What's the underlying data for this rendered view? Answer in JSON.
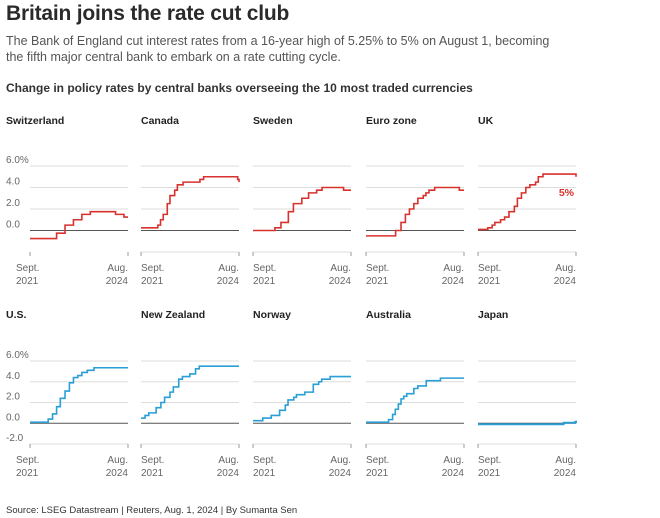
{
  "title": "Britain joins the rate cut club",
  "subtitle": "The Bank of England cut interest rates from a 16-year high of 5.25% to 5% on August 1, becoming the fifth major central bank to embark on a rate cutting cycle.",
  "section_title": "Change in policy rates by central banks overseeing the 10 most traded currencies",
  "source": "Source: LSEG Datastream | Reuters, Aug. 1, 2024 | By Sumanta Sen",
  "colors": {
    "red": "#d8322e",
    "blue": "#2a9fd6",
    "zero_line": "#555555",
    "grid": "#dddddd"
  },
  "chart_data": {
    "type": "line",
    "x_range": [
      2021.67,
      2024.58
    ],
    "x_ticks": [
      {
        "x": 2021.67,
        "label_1": "Sept.",
        "label_2": "2021"
      },
      {
        "x": 2024.58,
        "label_1": "Aug.",
        "label_2": "2024"
      }
    ],
    "ylim": [
      -2,
      6
    ],
    "y_ticks": [
      6,
      4,
      2,
      0,
      -2
    ],
    "y_tick_labels": [
      "6.0%",
      "4.0",
      "2.0",
      "0.0",
      "-2.0"
    ],
    "panels": [
      {
        "name": "Switzerland",
        "color": "red",
        "row": 0,
        "y_ticks": [
          6,
          4,
          2,
          0
        ],
        "x": [
          2021.67,
          2022.46,
          2022.71,
          2022.96,
          2023.21,
          2023.46,
          2024.21,
          2024.46,
          2024.58
        ],
        "y": [
          -0.75,
          -0.25,
          0.5,
          1.0,
          1.5,
          1.75,
          1.5,
          1.25,
          1.25
        ]
      },
      {
        "name": "Canada",
        "color": "red",
        "row": 0,
        "x": [
          2021.67,
          2022.17,
          2022.25,
          2022.33,
          2022.45,
          2022.53,
          2022.67,
          2022.75,
          2022.92,
          2023.08,
          2023.42,
          2023.53,
          2024.42,
          2024.54,
          2024.58
        ],
        "y": [
          0.25,
          0.5,
          1.0,
          1.5,
          2.5,
          3.25,
          3.75,
          4.25,
          4.5,
          4.5,
          4.75,
          5.0,
          5.0,
          4.75,
          4.5
        ]
      },
      {
        "name": "Sweden",
        "color": "red",
        "row": 0,
        "x": [
          2021.67,
          2022.32,
          2022.5,
          2022.72,
          2022.87,
          2023.12,
          2023.32,
          2023.56,
          2023.72,
          2024.36,
          2024.58
        ],
        "y": [
          0.0,
          0.25,
          0.75,
          1.75,
          2.5,
          3.0,
          3.5,
          3.75,
          4.0,
          3.75,
          3.75
        ]
      },
      {
        "name": "Euro zone",
        "color": "red",
        "row": 0,
        "x": [
          2021.67,
          2022.55,
          2022.71,
          2022.84,
          2022.96,
          2023.09,
          2023.21,
          2023.37,
          2023.45,
          2023.54,
          2023.71,
          2024.44,
          2024.58
        ],
        "y": [
          -0.5,
          0.0,
          0.75,
          1.5,
          2.0,
          2.5,
          3.0,
          3.25,
          3.5,
          3.75,
          4.0,
          3.75,
          3.75
        ]
      },
      {
        "name": "UK",
        "color": "red",
        "row": 0,
        "annotation": "5%",
        "x": [
          2021.67,
          2021.96,
          2022.09,
          2022.17,
          2022.34,
          2022.46,
          2022.59,
          2022.75,
          2022.84,
          2022.96,
          2023.09,
          2023.21,
          2023.38,
          2023.46,
          2023.6,
          2024.58
        ],
        "y": [
          0.1,
          0.25,
          0.5,
          0.75,
          1.0,
          1.25,
          1.75,
          2.25,
          3.0,
          3.5,
          4.0,
          4.25,
          4.5,
          5.0,
          5.25,
          5.0
        ]
      },
      {
        "name": "U.S.",
        "color": "blue",
        "row": 1,
        "x": [
          2021.67,
          2022.21,
          2022.34,
          2022.46,
          2022.57,
          2022.71,
          2022.84,
          2022.96,
          2023.09,
          2023.21,
          2023.37,
          2023.57,
          2024.58
        ],
        "y": [
          0.1,
          0.4,
          0.9,
          1.6,
          2.4,
          3.1,
          3.9,
          4.4,
          4.6,
          4.9,
          5.1,
          5.35,
          5.35
        ]
      },
      {
        "name": "New Zealand",
        "color": "blue",
        "row": 1,
        "x": [
          2021.67,
          2021.79,
          2021.9,
          2022.12,
          2022.26,
          2022.37,
          2022.53,
          2022.63,
          2022.79,
          2022.9,
          2023.12,
          2023.29,
          2023.4,
          2024.58
        ],
        "y": [
          0.5,
          0.75,
          1.0,
          1.5,
          2.0,
          2.5,
          3.0,
          3.5,
          4.25,
          4.5,
          4.75,
          5.25,
          5.5,
          5.5
        ]
      },
      {
        "name": "Norway",
        "color": "blue",
        "row": 1,
        "x": [
          2021.67,
          2021.96,
          2022.21,
          2022.46,
          2022.63,
          2022.71,
          2022.88,
          2022.96,
          2023.21,
          2023.46,
          2023.62,
          2023.71,
          2023.96,
          2024.58
        ],
        "y": [
          0.25,
          0.5,
          0.75,
          1.25,
          1.75,
          2.25,
          2.5,
          2.75,
          3.0,
          3.75,
          4.0,
          4.25,
          4.5,
          4.5
        ]
      },
      {
        "name": "Australia",
        "color": "blue",
        "row": 1,
        "x": [
          2021.67,
          2022.34,
          2022.46,
          2022.54,
          2022.63,
          2022.71,
          2022.79,
          2022.88,
          2023.09,
          2023.21,
          2023.46,
          2023.53,
          2023.88,
          2024.58
        ],
        "y": [
          0.1,
          0.35,
          0.85,
          1.35,
          1.85,
          2.35,
          2.6,
          2.85,
          3.35,
          3.6,
          4.1,
          4.1,
          4.35,
          4.35
        ]
      },
      {
        "name": "Japan",
        "color": "blue",
        "row": 1,
        "x": [
          2021.67,
          2024.21,
          2024.54,
          2024.58
        ],
        "y": [
          -0.1,
          0.05,
          0.1,
          0.25
        ]
      }
    ]
  }
}
